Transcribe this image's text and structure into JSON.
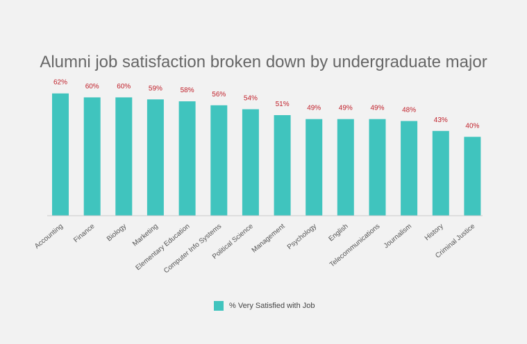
{
  "chart_data": {
    "type": "bar",
    "title": "Alumni job satisfaction broken down by undergraduate major",
    "xlabel": "",
    "ylabel": "",
    "ylim": [
      0,
      70
    ],
    "grid": false,
    "legend_position": "bottom",
    "categories": [
      "Accounting",
      "Finance",
      "Biology",
      "Marketing",
      "Elementary Education",
      "Computer Info Systems",
      "Political Science",
      "Management",
      "Psychology",
      "English",
      "Telecommunications",
      "Journalism",
      "History",
      "Criminal Justice"
    ],
    "series": [
      {
        "name": "% Very Satisfied with Job",
        "values": [
          62,
          60,
          60,
          59,
          58,
          56,
          54,
          51,
          49,
          49,
          49,
          48,
          43,
          40
        ],
        "data_labels": [
          "62%",
          "60%",
          "60%",
          "59%",
          "58%",
          "56%",
          "54%",
          "51%",
          "49%",
          "49%",
          "49%",
          "48%",
          "43%",
          "40%"
        ]
      }
    ],
    "colors": {
      "bar": "#40c4be",
      "data_label": "#c0202a",
      "axis": "#c9c9c9",
      "tick_label": "#555555",
      "title": "#666666"
    }
  }
}
